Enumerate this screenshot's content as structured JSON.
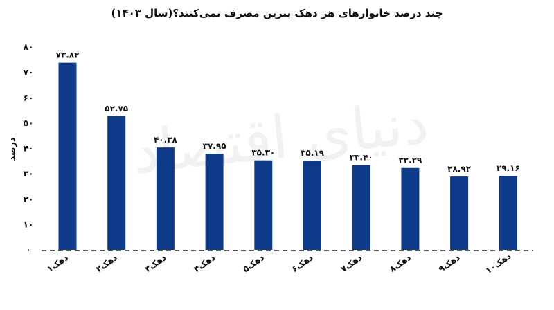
{
  "chart_data": {
    "type": "bar",
    "title": "چند درصد خانوارهای هر دهک بنزین مصرف نمی‌کنند؟(سال ۱۴۰۳)",
    "ylabel": "درصد",
    "xlabel": "",
    "ylim": [
      0,
      80
    ],
    "yticks": [
      0,
      10,
      20,
      30,
      40,
      50,
      60,
      70,
      80
    ],
    "ytick_labels": [
      "۰",
      "۱۰",
      "۲۰",
      "۳۰",
      "۴۰",
      "۵۰",
      "۶۰",
      "۷۰",
      "۸۰"
    ],
    "categories": [
      "دهک۱",
      "دهک۲",
      "دهک۳",
      "دهک۴",
      "دهک۵",
      "دهک۶",
      "دهک۷",
      "دهک۸",
      "دهک۹",
      "دهک۱۰"
    ],
    "values": [
      73.82,
      52.75,
      40.38,
      37.95,
      35.3,
      35.19,
      33.4,
      32.29,
      28.92,
      29.16
    ],
    "value_labels": [
      "۷۳.۸۲",
      "۵۲.۷۵",
      "۴۰.۳۸",
      "۳۷.۹۵",
      "۳۵.۳۰",
      "۳۵.۱۹",
      "۳۳.۴۰",
      "۳۲.۲۹",
      "۲۸.۹۲",
      "۲۹.۱۶"
    ],
    "bar_color": "#0d3b8a",
    "grid": false
  },
  "watermark": "دنیای اقتصاد"
}
